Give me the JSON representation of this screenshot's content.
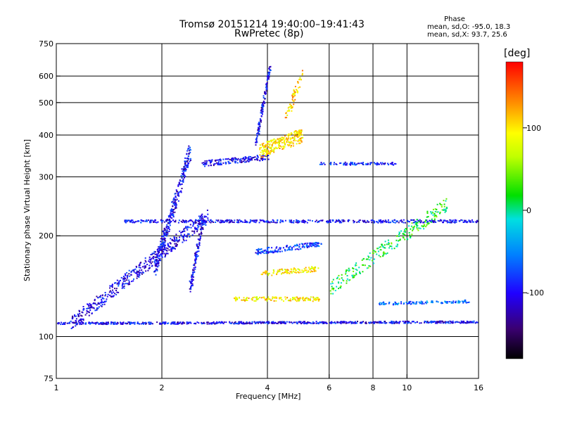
{
  "chart_data": {
    "type": "scatter",
    "title": "Tromsø 20151214 19:40:00–19:41:43",
    "subtitle": "RwPretec (8p)",
    "xlabel": "Frequency [MHz]",
    "ylabel": "Stationary phase Virtual Height [km]",
    "x_scale": "log",
    "y_scale": "log",
    "xlim": [
      1,
      16
    ],
    "ylim": [
      75,
      750
    ],
    "x_ticks": [
      1,
      2,
      4,
      6,
      8,
      10,
      16
    ],
    "y_ticks": [
      75,
      100,
      200,
      300,
      400,
      500,
      600,
      750
    ],
    "x_grid": [
      2,
      4,
      6,
      8,
      10
    ],
    "y_grid": [
      100,
      200,
      300,
      400,
      500,
      600
    ],
    "phase_stats": {
      "header": "Phase",
      "o_line": "mean, sd,O: -95.0, 18.3",
      "x_line": "mean, sd,X: 93.7, 25.6"
    },
    "colorbar": {
      "label": "[deg]",
      "range": [
        -180,
        180
      ],
      "ticks": [
        {
          "value": 100,
          "label": "100"
        },
        {
          "value": 0,
          "label": "0"
        },
        {
          "value": -100,
          "label": "-100"
        }
      ]
    },
    "traces": [
      {
        "x": [
          1.0,
          16.0
        ],
        "y": [
          110,
          111
        ],
        "phase": -100,
        "spread": 1.5,
        "n": 700
      },
      {
        "x": [
          1.55,
          16.0
        ],
        "y": [
          222,
          222
        ],
        "phase": -95,
        "spread": 2.0,
        "n": 500
      },
      {
        "x": [
          2.6,
          4.0
        ],
        "y": [
          330,
          345
        ],
        "phase": -100,
        "spread": 4.0,
        "n": 160
      },
      {
        "x": [
          3.7,
          4.05
        ],
        "y": [
          380,
          640
        ],
        "phase": -100,
        "spread": 4.0,
        "n": 130
      },
      {
        "x": [
          3.8,
          5.0
        ],
        "y": [
          360,
          400
        ],
        "phase": 105,
        "spread": 10.0,
        "n": 260
      },
      {
        "x": [
          4.5,
          5.0
        ],
        "y": [
          450,
          610
        ],
        "phase": 110,
        "spread": 8.0,
        "n": 60
      },
      {
        "x": [
          5.6,
          9.2
        ],
        "y": [
          330,
          330
        ],
        "phase": -90,
        "spread": 2.0,
        "n": 90
      },
      {
        "x": [
          8.3,
          15.0
        ],
        "y": [
          126,
          128
        ],
        "phase": -60,
        "spread": 2.0,
        "n": 120
      },
      {
        "x": [
          3.2,
          5.6
        ],
        "y": [
          130,
          130
        ],
        "phase": 100,
        "spread": 3.0,
        "n": 140
      },
      {
        "x": [
          3.7,
          5.7
        ],
        "y": [
          180,
          190
        ],
        "phase": -80,
        "spread": 4.0,
        "n": 160
      },
      {
        "x": [
          3.8,
          5.6
        ],
        "y": [
          155,
          160
        ],
        "phase": 100,
        "spread": 4.0,
        "n": 110
      },
      {
        "x": [
          1.1,
          2.7
        ],
        "y": [
          110,
          230
        ],
        "phase": -100,
        "spread": 10.0,
        "n": 500
      },
      {
        "x": [
          1.9,
          2.4
        ],
        "y": [
          160,
          360
        ],
        "phase": -100,
        "spread": 12.0,
        "n": 320
      },
      {
        "x": [
          2.4,
          2.6
        ],
        "y": [
          140,
          220
        ],
        "phase": -100,
        "spread": 8.0,
        "n": 120
      },
      {
        "x": [
          6.0,
          13.0
        ],
        "y": [
          140,
          250
        ],
        "phase": 20,
        "spread": 10.0,
        "n": 260
      }
    ]
  }
}
